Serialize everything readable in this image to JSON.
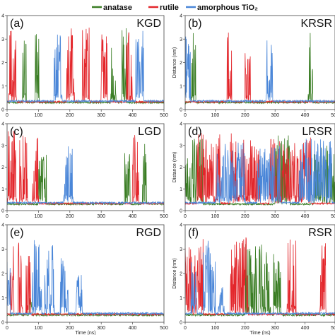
{
  "chart_data": {
    "legend": [
      {
        "name": "anatase",
        "color": "#3a7d24"
      },
      {
        "name": "rutile",
        "color": "#e3262b"
      },
      {
        "name": "amorphous TiO₂",
        "color": "#4a86d8"
      }
    ],
    "axes": {
      "xlabel": "Time (ns)",
      "ylabel": "Distance (nm)",
      "xlim": [
        0,
        500
      ],
      "ylim": [
        0,
        4
      ],
      "xticks": [
        "0",
        "100",
        "200",
        "300",
        "400",
        "500"
      ],
      "yticks": [
        "0",
        "1",
        "2",
        "3",
        "4"
      ]
    },
    "panels": [
      {
        "label": "(a)",
        "peptide": "KGD",
        "type": "line",
        "series": [
          {
            "name": "anatase",
            "bursts": [
              [
                50,
                62,
                3.3
              ],
              [
                90,
                102,
                3.6
              ],
              [
                330,
                348,
                3.4
              ],
              [
                365,
                380,
                3.5
              ]
            ]
          },
          {
            "name": "rutile",
            "bursts": [
              [
                5,
                30,
                3.4
              ],
              [
                190,
                215,
                3.6
              ],
              [
                240,
                262,
                3.7
              ],
              [
                300,
                320,
                3.2
              ],
              [
                380,
                402,
                3.6
              ]
            ]
          },
          {
            "name": "amorphous TiO₂",
            "bursts": [
              [
                150,
                175,
                3.2
              ],
              [
                410,
                435,
                3.4
              ]
            ]
          }
        ]
      },
      {
        "label": "(b)",
        "peptide": "KRSR",
        "type": "line",
        "series": [
          {
            "name": "anatase",
            "bursts": [
              [
                20,
                35,
                3.5
              ],
              [
                410,
                425,
                3.5
              ]
            ]
          },
          {
            "name": "rutile",
            "bursts": [
              [
                140,
                155,
                3.4
              ],
              [
                200,
                218,
                2.8
              ]
            ]
          },
          {
            "name": "amorphous TiO₂",
            "bursts": [
              [
                0,
                18,
                3.2
              ],
              [
                270,
                292,
                3.0
              ]
            ]
          }
        ]
      },
      {
        "label": "(c)",
        "peptide": "LGD",
        "type": "line",
        "series": [
          {
            "name": "anatase",
            "bursts": [
              [
                100,
                125,
                2.7
              ],
              [
                375,
                392,
                3.1
              ],
              [
                430,
                445,
                3.3
              ]
            ]
          },
          {
            "name": "rutile",
            "bursts": [
              [
                0,
                30,
                3.7
              ],
              [
                40,
                65,
                3.6
              ],
              [
                80,
                100,
                3.5
              ],
              [
                400,
                420,
                3.5
              ]
            ]
          },
          {
            "name": "amorphous TiO₂",
            "bursts": [
              [
                180,
                210,
                3.2
              ]
            ]
          }
        ]
      },
      {
        "label": "(d)",
        "peptide": "LRSR",
        "type": "line",
        "series": [
          {
            "name": "anatase",
            "bursts": [
              [
                0,
                60,
                3.3
              ],
              [
                300,
                350,
                3.5
              ],
              [
                430,
                500,
                3.0
              ]
            ]
          },
          {
            "name": "rutile",
            "bursts": [
              [
                40,
                120,
                3.6
              ],
              [
                150,
                250,
                3.6
              ],
              [
                280,
                420,
                3.4
              ]
            ]
          },
          {
            "name": "amorphous TiO₂",
            "bursts": [
              [
                100,
                200,
                3.2
              ],
              [
                240,
                320,
                3.0
              ],
              [
                380,
                490,
                3.4
              ]
            ]
          }
        ]
      },
      {
        "label": "(e)",
        "peptide": "RGD",
        "type": "line",
        "series": [
          {
            "name": "anatase",
            "bursts": [
              [
                70,
                80,
                1.0
              ]
            ]
          },
          {
            "name": "rutile",
            "bursts": [
              [
                10,
                22,
                3.3
              ],
              [
                35,
                50,
                3.5
              ],
              [
                60,
                75,
                3.1
              ]
            ]
          },
          {
            "name": "amorphous TiO₂",
            "bursts": [
              [
                0,
                10,
                3.0
              ],
              [
                80,
                110,
                3.4
              ],
              [
                120,
                150,
                3.2
              ],
              [
                170,
                195,
                2.7
              ],
              [
                220,
                240,
                2.0
              ]
            ]
          }
        ]
      },
      {
        "label": "(f)",
        "peptide": "RSR",
        "type": "line",
        "series": [
          {
            "name": "anatase",
            "bursts": [
              [
                200,
                240,
                3.3
              ],
              [
                245,
                285,
                3.2
              ],
              [
                295,
                320,
                3.5
              ]
            ]
          },
          {
            "name": "rutile",
            "bursts": [
              [
                0,
                25,
                3.2
              ],
              [
                30,
                60,
                3.5
              ],
              [
                150,
                210,
                3.5
              ],
              [
                340,
                370,
                3.5
              ],
              [
                450,
                470,
                3.4
              ]
            ]
          },
          {
            "name": "amorphous TiO₂",
            "bursts": [
              [
                20,
                40,
                2.5
              ],
              [
                60,
                100,
                3.4
              ],
              [
                110,
                130,
                1.5
              ]
            ]
          }
        ]
      }
    ]
  }
}
